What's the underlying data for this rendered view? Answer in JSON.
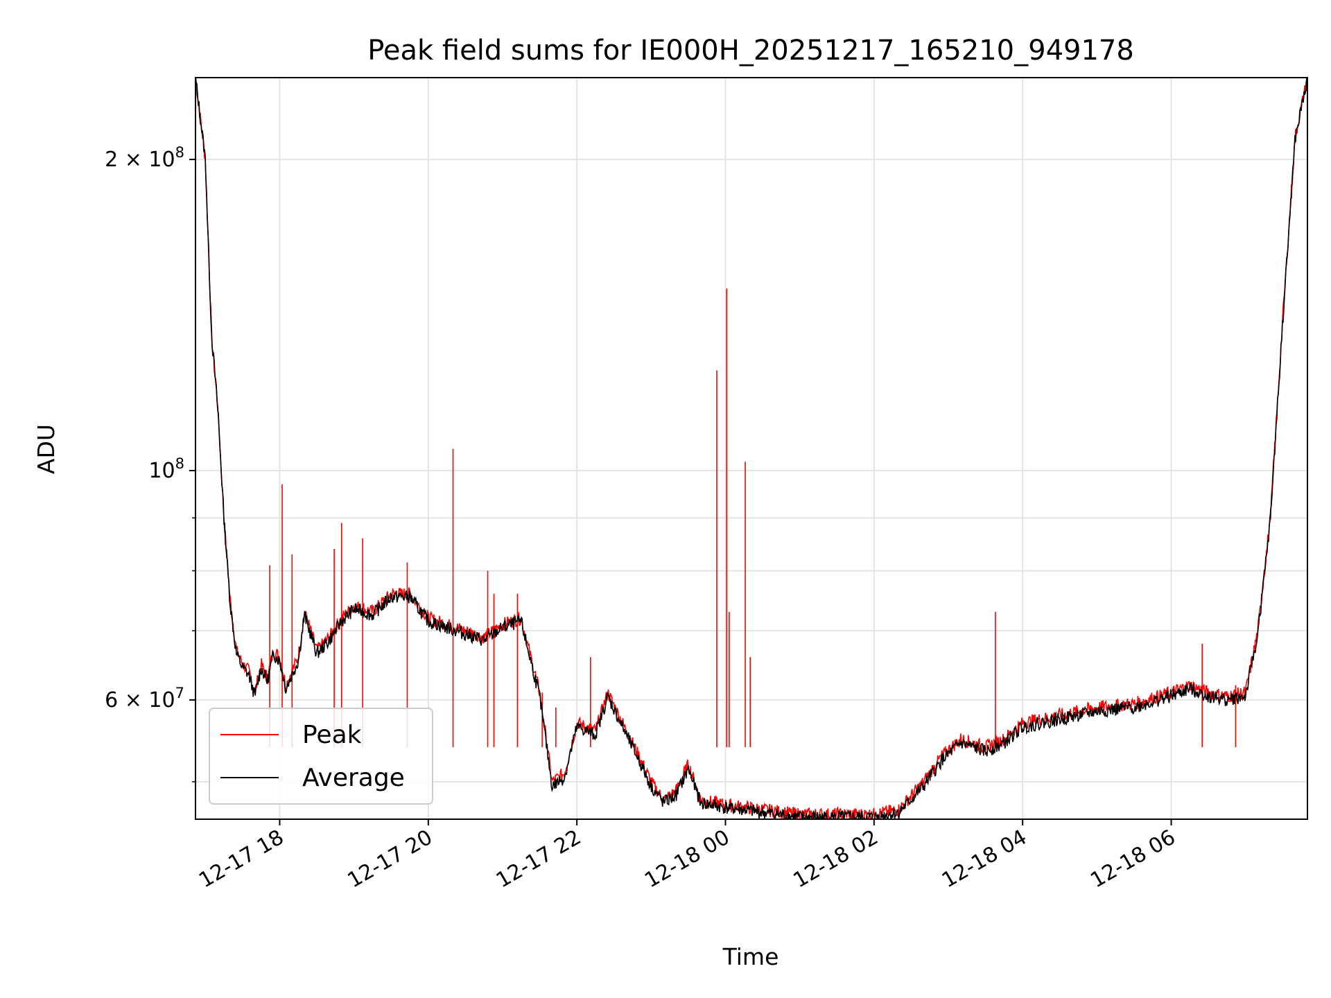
{
  "chart_data": {
    "type": "line",
    "title": "Peak field sums for IE000H_20251217_165210_949178",
    "xlabel": "Time",
    "ylabel": "ADU",
    "x_axis_type": "datetime",
    "xlim": [
      "2025-12-17 16:52",
      "2025-12-18 07:50"
    ],
    "ylim": [
      46000000,
      240000000
    ],
    "y_scale": "log",
    "grid": true,
    "legend_position": "lower-left",
    "x_ticks": [
      {
        "value": "2025-12-17 18:00",
        "label": "12-17 18"
      },
      {
        "value": "2025-12-17 20:00",
        "label": "12-17 20"
      },
      {
        "value": "2025-12-17 22:00",
        "label": "12-17 22"
      },
      {
        "value": "2025-12-18 00:00",
        "label": "12-18 00"
      },
      {
        "value": "2025-12-18 02:00",
        "label": "12-18 02"
      },
      {
        "value": "2025-12-18 04:00",
        "label": "12-18 04"
      },
      {
        "value": "2025-12-18 06:00",
        "label": "12-18 06"
      }
    ],
    "y_major_ticks": [
      {
        "value": 100000000,
        "base": "10",
        "exp": "8",
        "coef": ""
      },
      {
        "value": 200000000,
        "base": "10",
        "exp": "8",
        "coef": "2 × "
      },
      {
        "value": 60000000,
        "base": "10",
        "exp": "7",
        "coef": "6 × "
      }
    ],
    "y_minor_ticks": [
      50000000,
      70000000,
      80000000,
      90000000,
      300000000
    ],
    "series": [
      {
        "name": "Peak",
        "color": "#ff0000",
        "x": [
          "2025-12-17 16:52",
          "2025-12-17 17:00",
          "2025-12-17 17:05",
          "2025-12-17 17:10",
          "2025-12-17 17:15",
          "2025-12-17 17:20",
          "2025-12-17 17:25",
          "2025-12-17 17:30",
          "2025-12-17 17:35",
          "2025-12-17 17:40",
          "2025-12-17 17:45",
          "2025-12-17 17:50",
          "2025-12-17 17:55",
          "2025-12-17 18:00",
          "2025-12-17 18:05",
          "2025-12-17 18:10",
          "2025-12-17 18:15",
          "2025-12-17 18:20",
          "2025-12-17 18:25",
          "2025-12-17 18:30",
          "2025-12-17 18:40",
          "2025-12-17 18:50",
          "2025-12-17 19:00",
          "2025-12-17 19:15",
          "2025-12-17 19:30",
          "2025-12-17 19:45",
          "2025-12-17 20:00",
          "2025-12-17 20:15",
          "2025-12-17 20:30",
          "2025-12-17 20:45",
          "2025-12-17 21:00",
          "2025-12-17 21:15",
          "2025-12-17 21:20",
          "2025-12-17 21:30",
          "2025-12-17 21:40",
          "2025-12-17 21:50",
          "2025-12-17 22:00",
          "2025-12-17 22:15",
          "2025-12-17 22:25",
          "2025-12-17 22:40",
          "2025-12-17 22:50",
          "2025-12-17 23:00",
          "2025-12-17 23:10",
          "2025-12-17 23:20",
          "2025-12-17 23:30",
          "2025-12-17 23:40",
          "2025-12-18 00:00",
          "2025-12-18 00:30",
          "2025-12-18 01:00",
          "2025-12-18 01:30",
          "2025-12-18 02:00",
          "2025-12-18 02:20",
          "2025-12-18 02:40",
          "2025-12-18 02:55",
          "2025-12-18 03:10",
          "2025-12-18 03:30",
          "2025-12-18 03:45",
          "2025-12-18 04:00",
          "2025-12-18 04:30",
          "2025-12-18 05:00",
          "2025-12-18 05:30",
          "2025-12-18 06:00",
          "2025-12-18 06:15",
          "2025-12-18 06:30",
          "2025-12-18 06:45",
          "2025-12-18 07:00",
          "2025-12-18 07:10",
          "2025-12-18 07:20",
          "2025-12-18 07:30",
          "2025-12-18 07:40",
          "2025-12-18 07:50"
        ],
        "values": [
          240000000,
          200000000,
          135000000,
          115000000,
          90000000,
          75000000,
          67000000,
          65000000,
          64000000,
          61000000,
          65000000,
          63000000,
          67000000,
          66000000,
          62000000,
          64000000,
          66000000,
          73000000,
          70000000,
          67000000,
          69000000,
          72000000,
          74000000,
          73000000,
          76000000,
          76000000,
          72000000,
          71000000,
          70000000,
          69000000,
          71000000,
          72000000,
          68000000,
          61000000,
          50000000,
          51000000,
          57000000,
          56000000,
          61000000,
          56000000,
          53000000,
          50000000,
          48000000,
          49000000,
          52000000,
          48000000,
          47500000,
          47000000,
          46500000,
          46500000,
          46500000,
          47000000,
          50000000,
          53000000,
          55000000,
          54000000,
          55000000,
          57000000,
          58000000,
          59000000,
          59500000,
          61000000,
          62000000,
          61000000,
          60500000,
          61000000,
          70000000,
          90000000,
          140000000,
          210000000,
          240000000
        ]
      },
      {
        "name": "Average",
        "color": "#000000",
        "x": [
          "2025-12-17 16:52",
          "2025-12-17 17:00",
          "2025-12-17 17:05",
          "2025-12-17 17:10",
          "2025-12-17 17:15",
          "2025-12-17 17:20",
          "2025-12-17 17:25",
          "2025-12-17 17:30",
          "2025-12-17 17:35",
          "2025-12-17 17:40",
          "2025-12-17 17:45",
          "2025-12-17 17:50",
          "2025-12-17 17:55",
          "2025-12-17 18:00",
          "2025-12-17 18:05",
          "2025-12-17 18:10",
          "2025-12-17 18:15",
          "2025-12-17 18:20",
          "2025-12-17 18:25",
          "2025-12-17 18:30",
          "2025-12-17 18:40",
          "2025-12-17 18:50",
          "2025-12-17 19:00",
          "2025-12-17 19:15",
          "2025-12-17 19:30",
          "2025-12-17 19:45",
          "2025-12-17 20:00",
          "2025-12-17 20:15",
          "2025-12-17 20:30",
          "2025-12-17 20:45",
          "2025-12-17 21:00",
          "2025-12-17 21:15",
          "2025-12-17 21:20",
          "2025-12-17 21:30",
          "2025-12-17 21:40",
          "2025-12-17 21:50",
          "2025-12-17 22:00",
          "2025-12-17 22:15",
          "2025-12-17 22:25",
          "2025-12-17 22:40",
          "2025-12-17 22:50",
          "2025-12-17 23:00",
          "2025-12-17 23:10",
          "2025-12-17 23:20",
          "2025-12-17 23:30",
          "2025-12-17 23:40",
          "2025-12-18 00:00",
          "2025-12-18 00:30",
          "2025-12-18 01:00",
          "2025-12-18 01:30",
          "2025-12-18 02:00",
          "2025-12-18 02:20",
          "2025-12-18 02:40",
          "2025-12-18 02:55",
          "2025-12-18 03:10",
          "2025-12-18 03:30",
          "2025-12-18 03:45",
          "2025-12-18 04:00",
          "2025-12-18 04:30",
          "2025-12-18 05:00",
          "2025-12-18 05:30",
          "2025-12-18 06:00",
          "2025-12-18 06:15",
          "2025-12-18 06:30",
          "2025-12-18 06:45",
          "2025-12-18 07:00",
          "2025-12-18 07:10",
          "2025-12-18 07:20",
          "2025-12-18 07:30",
          "2025-12-18 07:40",
          "2025-12-18 07:50"
        ],
        "values": [
          240000000,
          200000000,
          135000000,
          115000000,
          90000000,
          74500000,
          66500000,
          64500000,
          63500000,
          60500000,
          64500000,
          62500000,
          66500000,
          65500000,
          61500000,
          63500000,
          65500000,
          72500000,
          69500000,
          66500000,
          68500000,
          71500000,
          73500000,
          72500000,
          75500000,
          75500000,
          71500000,
          70500000,
          69500000,
          68500000,
          70500000,
          71500000,
          67500000,
          60500000,
          49500000,
          50500000,
          56500000,
          55500000,
          60500000,
          55500000,
          52500000,
          49500000,
          47700000,
          48500000,
          51500000,
          47700000,
          47200000,
          46700000,
          46200000,
          46200000,
          46200000,
          46700000,
          49500000,
          52500000,
          54500000,
          53500000,
          54500000,
          56500000,
          57500000,
          58500000,
          59000000,
          60500000,
          61500000,
          60500000,
          60000000,
          60500000,
          69500000,
          89500000,
          139000000,
          209000000,
          240000000
        ]
      }
    ],
    "spikes": [
      {
        "x": "2025-12-17 17:52",
        "value": 81000000
      },
      {
        "x": "2025-12-17 18:02",
        "value": 97000000
      },
      {
        "x": "2025-12-17 18:10",
        "value": 83000000
      },
      {
        "x": "2025-12-17 18:44",
        "value": 84000000
      },
      {
        "x": "2025-12-17 18:50",
        "value": 89000000
      },
      {
        "x": "2025-12-17 19:07",
        "value": 86000000
      },
      {
        "x": "2025-12-17 19:43",
        "value": 81500000
      },
      {
        "x": "2025-12-17 20:20",
        "value": 105000000
      },
      {
        "x": "2025-12-17 20:48",
        "value": 80000000
      },
      {
        "x": "2025-12-17 20:53",
        "value": 76000000
      },
      {
        "x": "2025-12-17 21:12",
        "value": 76000000
      },
      {
        "x": "2025-12-17 21:32",
        "value": 61000000
      },
      {
        "x": "2025-12-17 21:43",
        "value": 59000000
      },
      {
        "x": "2025-12-17 22:11",
        "value": 66000000
      },
      {
        "x": "2025-12-17 23:26",
        "value": 54000000
      },
      {
        "x": "2025-12-17 23:53",
        "value": 125000000
      },
      {
        "x": "2025-12-18 00:01",
        "value": 150000000
      },
      {
        "x": "2025-12-18 00:03",
        "value": 73000000
      },
      {
        "x": "2025-12-18 00:16",
        "value": 102000000
      },
      {
        "x": "2025-12-18 00:20",
        "value": 66000000
      },
      {
        "x": "2025-12-18 03:38",
        "value": 73000000
      },
      {
        "x": "2025-12-18 06:25",
        "value": 68000000
      },
      {
        "x": "2025-12-18 06:52",
        "value": 62000000
      }
    ]
  }
}
